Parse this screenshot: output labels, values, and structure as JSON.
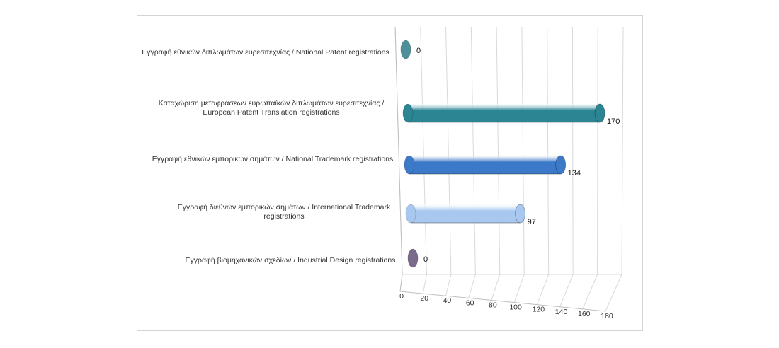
{
  "chart_data": {
    "type": "bar",
    "orientation": "horizontal",
    "style": "3d-cylinder",
    "title": "",
    "xlabel": "",
    "ylabel": "",
    "categories": [
      [
        "Εγγραφή εθνικών  διπλωμάτων ευρεσιτεχνίας  / National Patent registrations"
      ],
      [
        "Καταχώριση  μεταφράσεων ευρωπαϊκών  διπλωμάτων ευρεσιτεχνίας  /",
        "European Patent Translation registrations"
      ],
      [
        "Εγγραφή εθνικών  εμπορικών σημάτων  / National Trademark registrations"
      ],
      [
        "Εγγραφή διεθνών  εμπορικών σημάτων  / International Trademark",
        "registrations"
      ],
      [
        "Εγγραφή βιομηχανικών  σχεδίων  / Industrial Design registrations"
      ]
    ],
    "values": [
      0,
      170,
      134,
      97,
      0
    ],
    "value_labels": [
      "0",
      "170",
      "134",
      "97",
      "0"
    ],
    "colors": [
      "#4f8f99",
      "#2b8593",
      "#3d79c9",
      "#a9c8f0",
      "#7a6a8c"
    ],
    "xlim": [
      0,
      180
    ],
    "ticks": [
      "0",
      "20",
      "40",
      "60",
      "80",
      "100",
      "120",
      "140",
      "160",
      "180"
    ],
    "grid": true,
    "legend": "none"
  }
}
